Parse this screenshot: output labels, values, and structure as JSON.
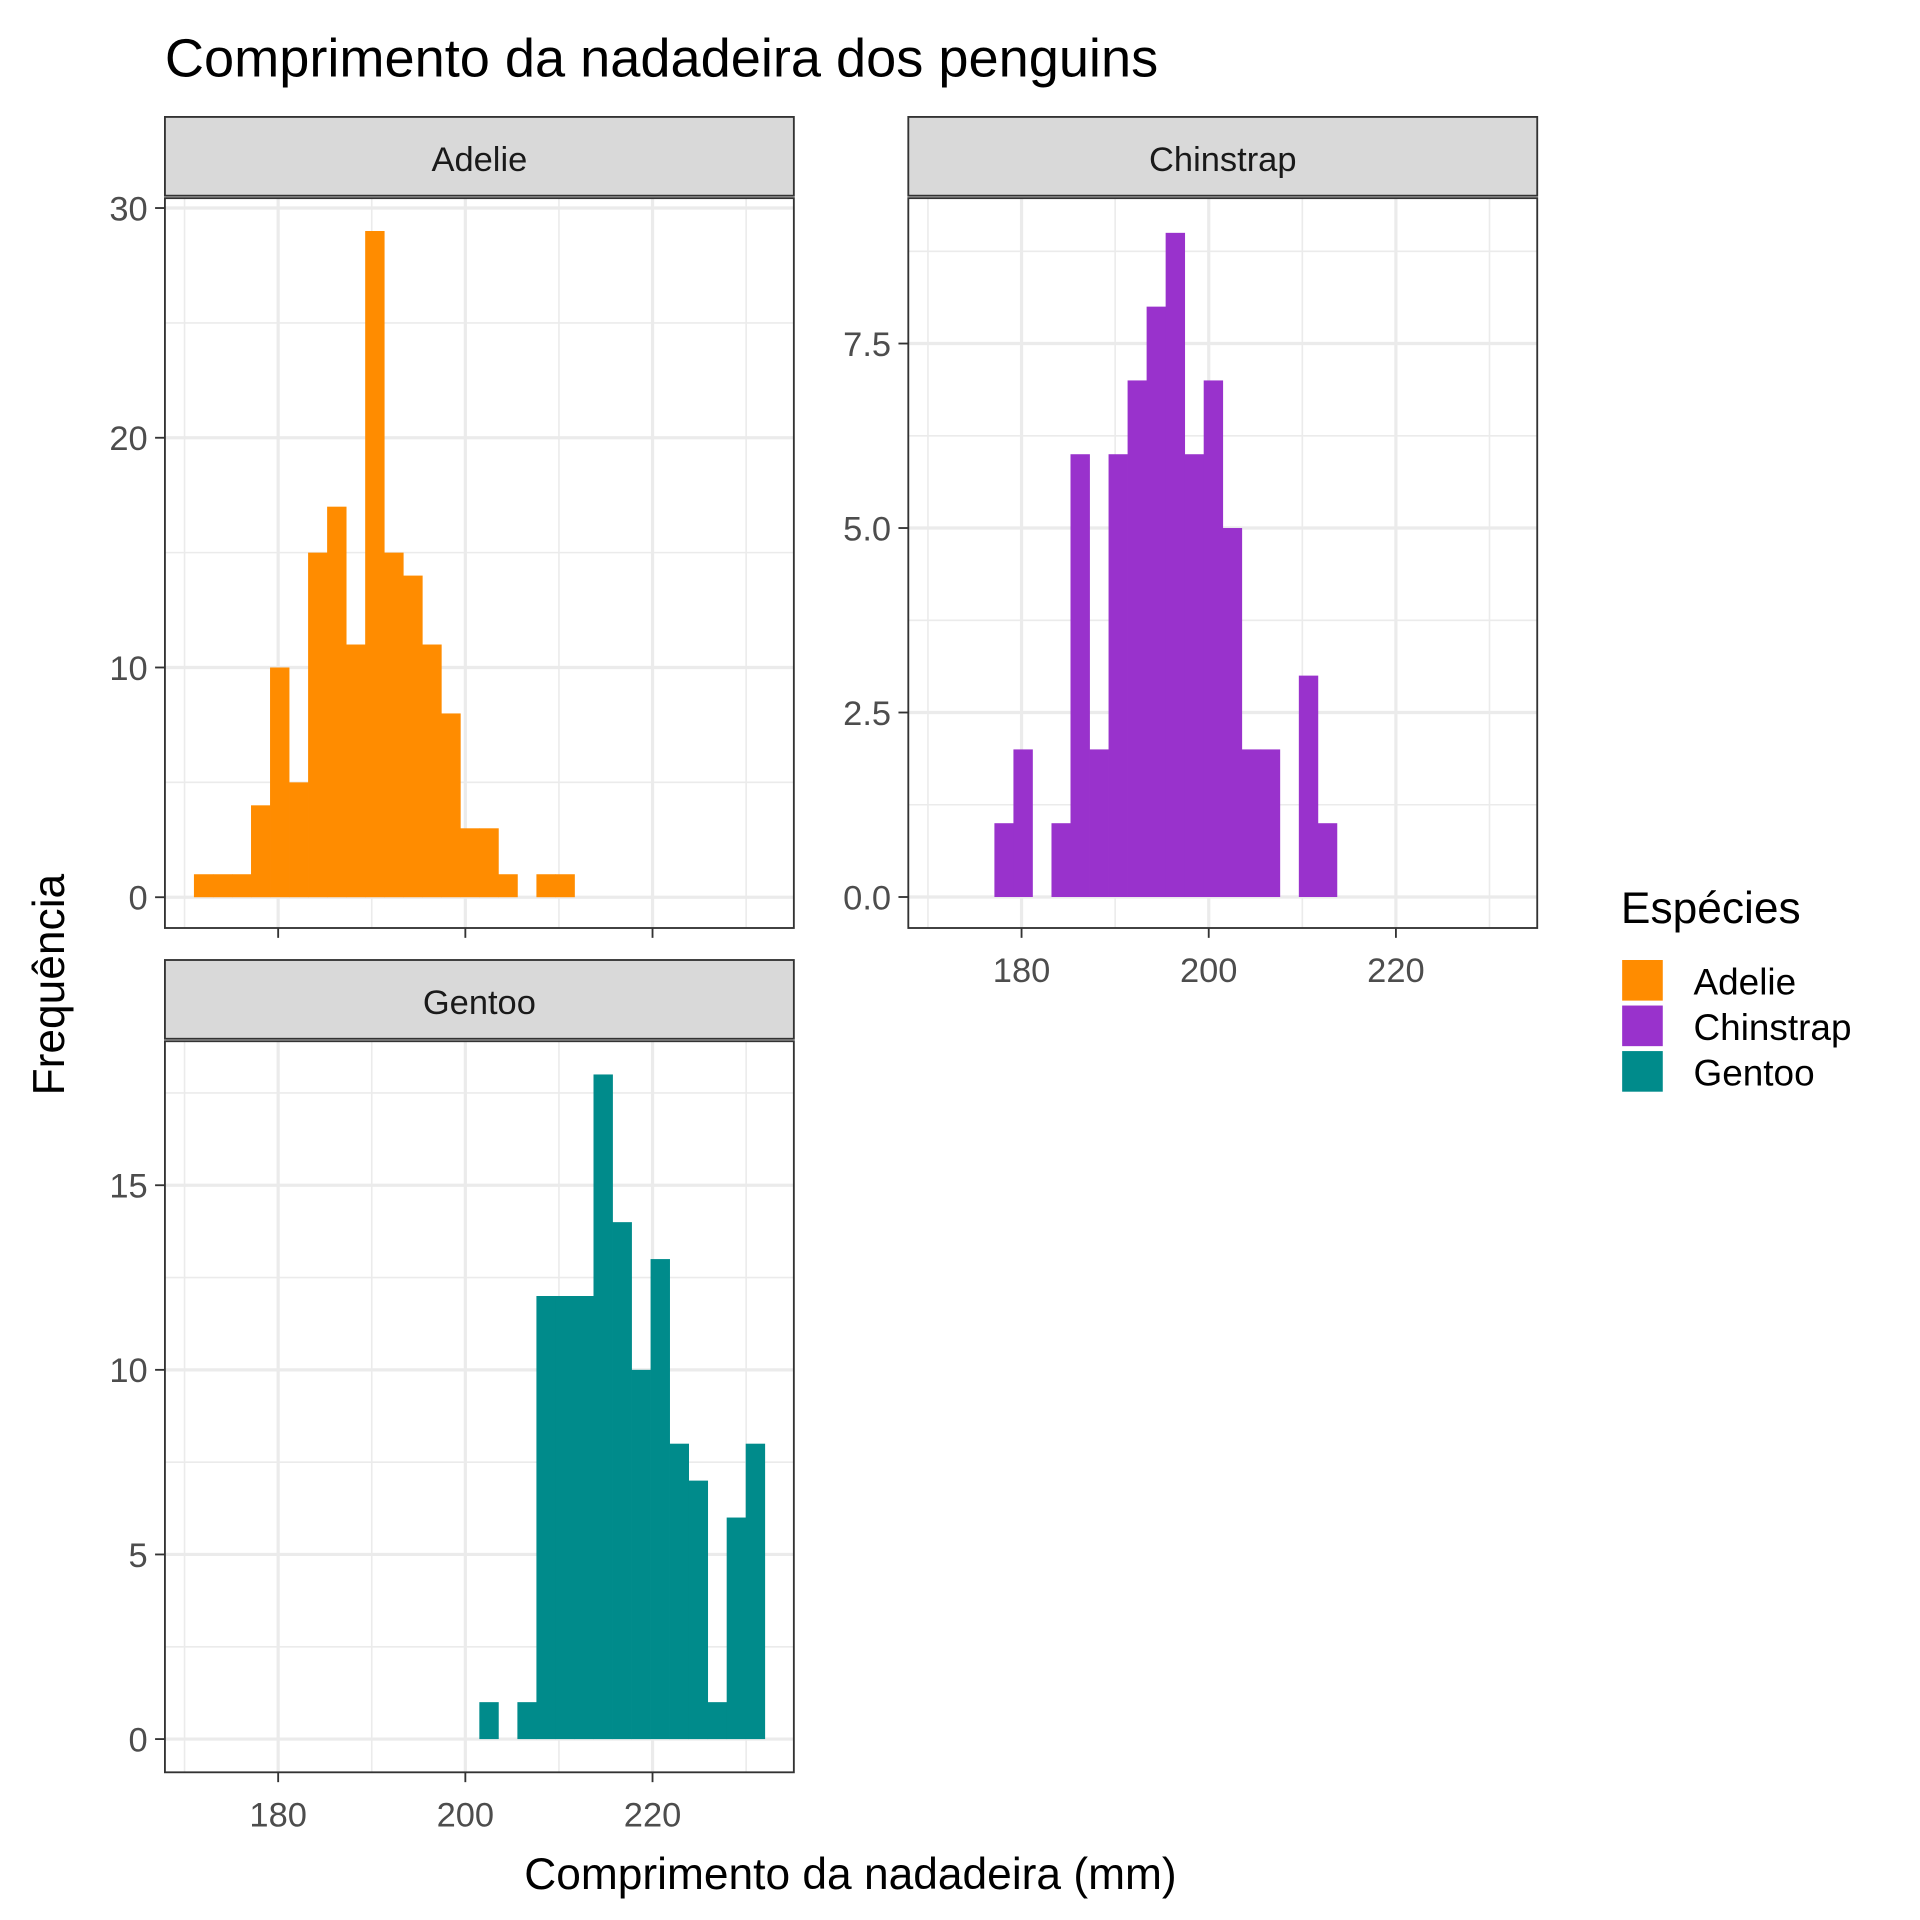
{
  "chart_data": {
    "type": "bar",
    "subtype": "faceted-histogram",
    "title": "Comprimento da nadadeira dos penguins",
    "xlabel": "Comprimento da nadadeira (mm)",
    "ylabel": "Frequência",
    "bins": {
      "start": 171,
      "width": 2.033,
      "count": 30
    },
    "xlim": [
      167.9,
      235.1
    ],
    "x_ticks": [
      "180",
      "200",
      "220"
    ],
    "x_tick_values": [
      180,
      200,
      220
    ],
    "legend": {
      "title": "Espécies",
      "position": "right"
    },
    "grid": true,
    "panels": [
      {
        "name": "Adelie",
        "color": "#FF8C00",
        "values": [
          1,
          1,
          1,
          4,
          10,
          5,
          15,
          17,
          11,
          29,
          15,
          14,
          11,
          8,
          3,
          3,
          1,
          0,
          1,
          1,
          0,
          0,
          0,
          0,
          0,
          0,
          0,
          0,
          0,
          0
        ],
        "ylim": [
          -1.34,
          30.43
        ],
        "y_tick_values": [
          0,
          10,
          20,
          30
        ],
        "y_ticks": [
          "0",
          "10",
          "20",
          "30"
        ]
      },
      {
        "name": "Chinstrap",
        "color": "#9932CC",
        "values": [
          0,
          0,
          0,
          1,
          2,
          0,
          1,
          6,
          2,
          6,
          7,
          8,
          9,
          6,
          7,
          5,
          2,
          2,
          0,
          3,
          1,
          0,
          0,
          0,
          0,
          0,
          0,
          0,
          0,
          0
        ],
        "ylim": [
          -0.42,
          9.47
        ],
        "y_tick_values": [
          0,
          2.5,
          5,
          7.5
        ],
        "y_ticks": [
          "0.0",
          "2.5",
          "5.0",
          "7.5"
        ]
      },
      {
        "name": "Gentoo",
        "color": "#008B8B",
        "values": [
          0,
          0,
          0,
          0,
          0,
          0,
          0,
          0,
          0,
          0,
          0,
          0,
          0,
          0,
          0,
          1,
          0,
          1,
          12,
          12,
          12,
          18,
          14,
          10,
          13,
          8,
          7,
          1,
          6,
          8
        ],
        "ylim": [
          -0.9,
          18.9
        ],
        "y_tick_values": [
          0,
          5,
          10,
          15
        ],
        "y_ticks": [
          "0",
          "5",
          "10",
          "15"
        ]
      }
    ]
  }
}
